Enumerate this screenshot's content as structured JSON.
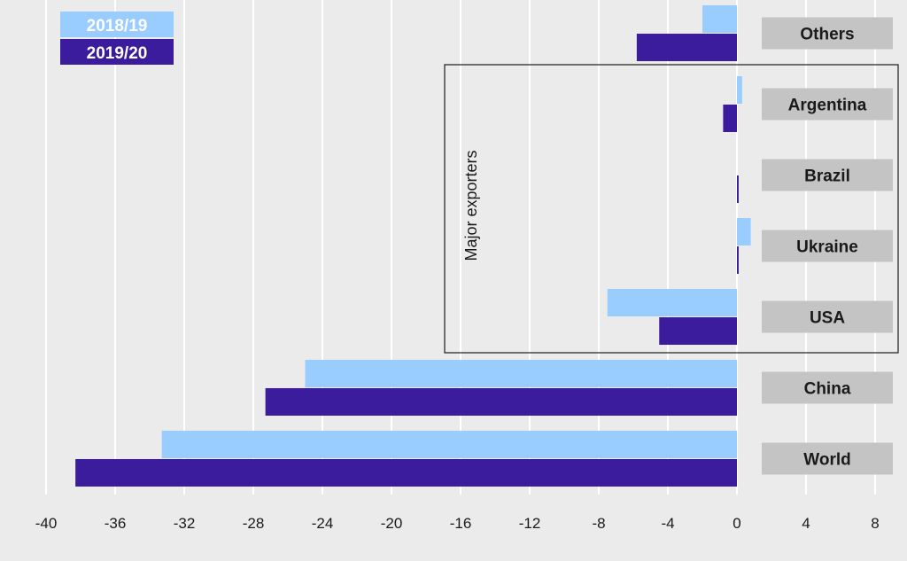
{
  "chart_data": {
    "type": "bar",
    "orientation": "horizontal",
    "categories": [
      "Others",
      "Argentina",
      "Brazil",
      "Ukraine",
      "USA",
      "China",
      "World"
    ],
    "series": [
      {
        "name": "2018/19",
        "color": "#99ccff",
        "values": [
          -2.0,
          0.3,
          0.0,
          0.8,
          -7.5,
          -25.0,
          -33.3
        ]
      },
      {
        "name": "2019/20",
        "color": "#3a1c9c",
        "values": [
          -5.8,
          -0.8,
          0.1,
          0.1,
          -4.5,
          -27.3,
          -38.3
        ]
      }
    ],
    "xlim": [
      -40,
      8
    ],
    "xticks": [
      -40,
      -36,
      -32,
      -28,
      -24,
      -20,
      -16,
      -12,
      -8,
      -4,
      0,
      4,
      8
    ],
    "grid": true,
    "legend_position": "top-left",
    "group_annotation": {
      "label": "Major exporters",
      "categories": [
        "Argentina",
        "Brazil",
        "Ukraine",
        "USA"
      ]
    },
    "label_box_color": "#c4c4c4"
  }
}
